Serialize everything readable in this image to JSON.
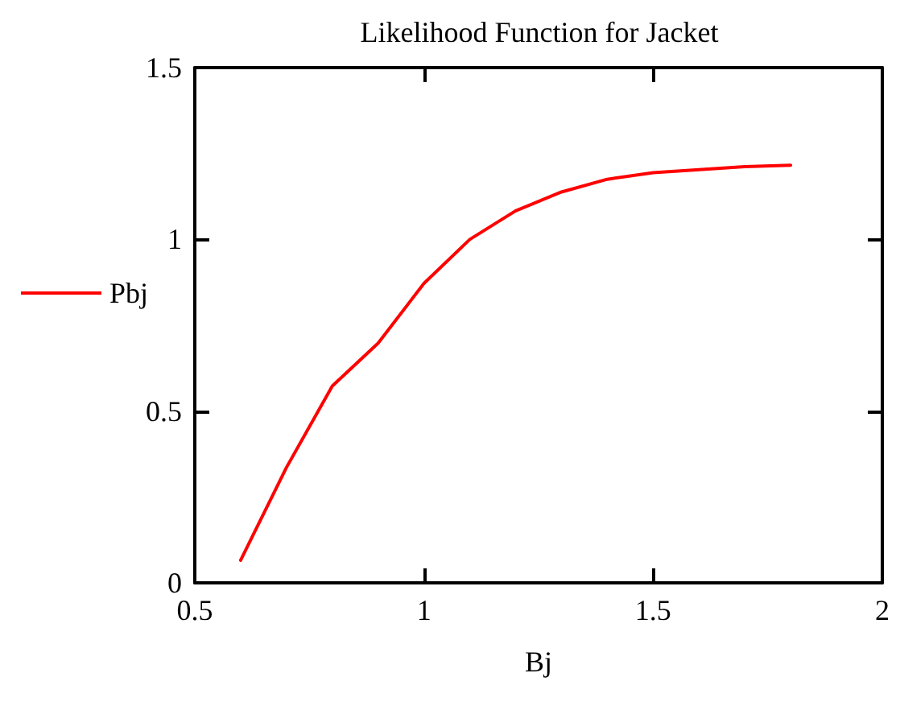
{
  "chart_data": {
    "type": "line",
    "title": "Likelihood Function for Jacket",
    "xlabel": "Bj",
    "x": [
      0.6,
      0.7,
      0.8,
      0.9,
      1.0,
      1.1,
      1.2,
      1.3,
      1.4,
      1.5,
      1.6,
      1.7,
      1.8
    ],
    "series": [
      {
        "name": "Pbj",
        "color": "#ff0000",
        "values": [
          0.066,
          0.336,
          0.573,
          0.698,
          0.872,
          1.0,
          1.083,
          1.138,
          1.175,
          1.194,
          1.203,
          1.212,
          1.216
        ]
      }
    ],
    "xlim": [
      0.5,
      2
    ],
    "xticks": [
      0.5,
      1,
      1.5,
      2
    ],
    "ylim": [
      0,
      1.5
    ],
    "yticks": [
      0,
      0.5,
      1,
      1.5
    ],
    "grid": false,
    "legend": "left",
    "marker": "none",
    "line_style": "solid"
  }
}
